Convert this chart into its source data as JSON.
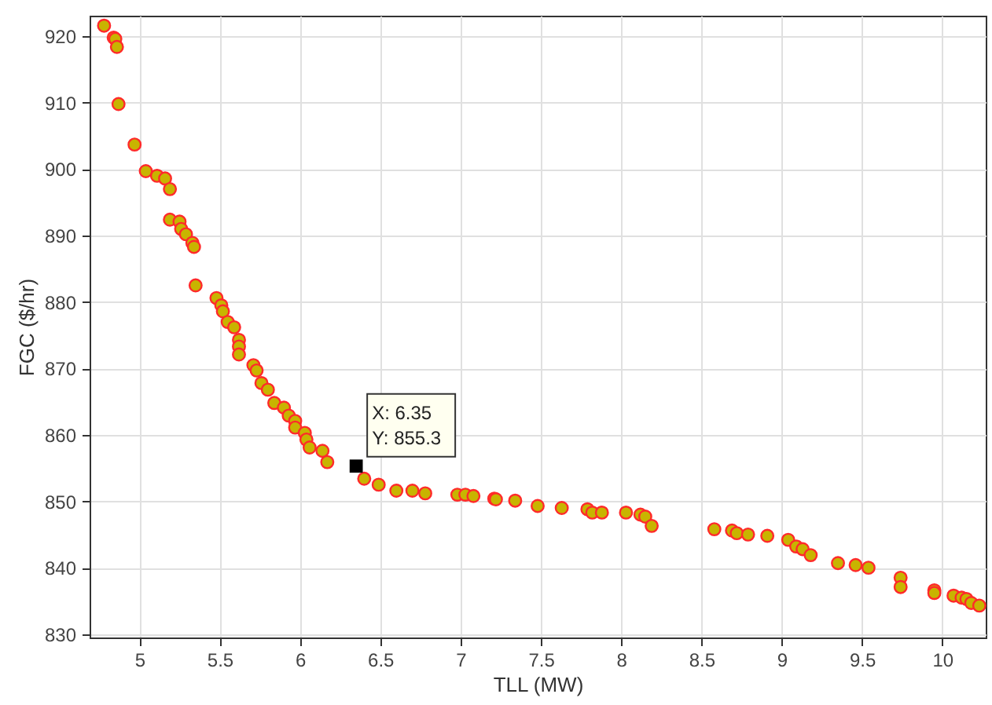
{
  "chart_data": {
    "type": "scatter",
    "xlabel": "TLL (MW)",
    "ylabel": "FGC ($/hr)",
    "xlim": [
      4.69,
      10.27
    ],
    "ylim": [
      829.5,
      923.1
    ],
    "xticks": [
      5,
      5.5,
      6,
      6.5,
      7,
      7.5,
      8,
      8.5,
      9,
      9.5,
      10
    ],
    "yticks": [
      830,
      840,
      850,
      860,
      870,
      880,
      890,
      900,
      910,
      920
    ],
    "grid": true,
    "marker": "circle",
    "annotations": [
      {
        "text": "X: 6.35\nY: 855.3",
        "x": 6.35,
        "y": 855.3
      }
    ],
    "series": [
      {
        "color": "#c8b400",
        "x": [
          4.78,
          4.84,
          4.85,
          4.86,
          4.87,
          4.97,
          5.04,
          5.11,
          5.16,
          5.19,
          5.19,
          5.25,
          5.26,
          5.29,
          5.33,
          5.34,
          5.35,
          5.48,
          5.51,
          5.52,
          5.55,
          5.59,
          5.62,
          5.62,
          5.62,
          5.71,
          5.73,
          5.76,
          5.8,
          5.84,
          5.9,
          5.93,
          5.97,
          5.97,
          6.03,
          6.04,
          6.06,
          6.14,
          6.17,
          6.4,
          6.49,
          6.6,
          6.7,
          6.78,
          6.98,
          7.03,
          7.08,
          7.21,
          7.22,
          7.34,
          7.48,
          7.63,
          7.79,
          7.82,
          7.88,
          8.03,
          8.12,
          8.15,
          8.19,
          8.58,
          8.69,
          8.72,
          8.79,
          8.91,
          9.04,
          9.09,
          9.13,
          9.18,
          9.35,
          9.46,
          9.54,
          9.74,
          9.74,
          9.95,
          9.95,
          10.07,
          10.12,
          10.15,
          10.18,
          10.23
        ],
        "values": [
          921.6,
          919.8,
          919.6,
          918.4,
          909.8,
          903.7,
          899.7,
          899.0,
          898.6,
          897.0,
          892.4,
          892.1,
          891.0,
          890.2,
          888.9,
          888.3,
          882.5,
          880.6,
          879.5,
          878.6,
          877.0,
          876.2,
          874.3,
          873.3,
          872.1,
          870.5,
          869.7,
          867.8,
          866.8,
          864.8,
          864.1,
          862.9,
          862.1,
          861.1,
          860.3,
          859.3,
          858.1,
          857.6,
          855.9,
          853.4,
          852.5,
          851.6,
          851.6,
          851.2,
          851.0,
          851.0,
          850.8,
          850.4,
          850.3,
          850.1,
          849.3,
          849.0,
          848.8,
          848.3,
          848.3,
          848.3,
          848.0,
          847.7,
          846.3,
          845.8,
          845.6,
          845.2,
          845.0,
          844.8,
          844.2,
          843.2,
          842.8,
          841.9,
          840.7,
          840.4,
          840.0,
          838.5,
          837.1,
          836.6,
          836.2,
          835.8,
          835.5,
          835.3,
          834.7,
          834.3
        ]
      }
    ]
  }
}
